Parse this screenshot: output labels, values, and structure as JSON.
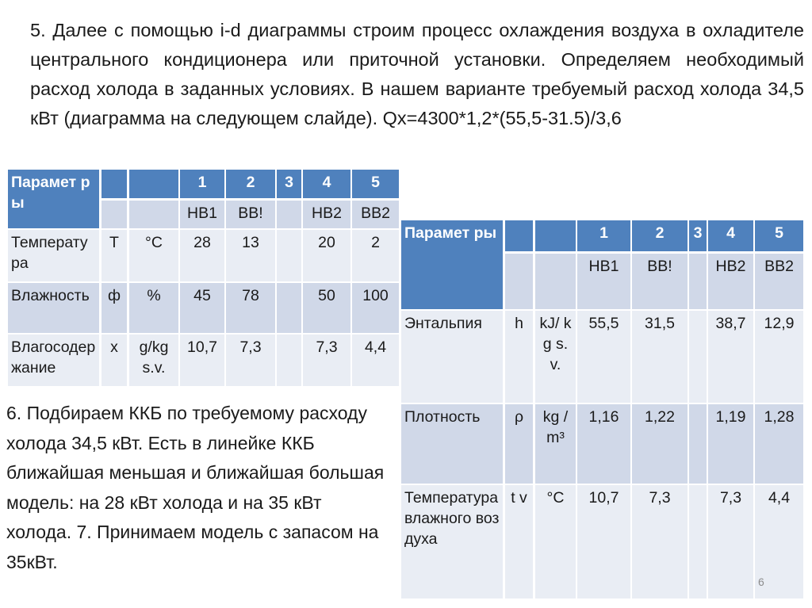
{
  "intro_text": "5. Далее с помощью i-d диаграммы строим процесс охлаждения воздуха в охладителе центрального кондиционера или приточной установки. Определяем необходимый расход холода в заданных условиях. В нашем варианте требуемый расход холода 34,5 кВт (диаграмма на следующем слайде). Qх=4300*1,2*(55,5-31.5)/3,6",
  "side_text": "6. Подбираем ККБ по требуемому расходу холода 34,5 кВт. Есть в линейке ККБ ближайшая меньшая и ближайшая большая модель: на 28 кВт холода и на 35 кВт холода. 7. Принимаем модель с запасом на 35кВт.",
  "page_number": "6",
  "colors": {
    "header": "#4f81bd",
    "band_dark": "#d0d8e8",
    "band_light": "#e9edf4"
  },
  "table_left": {
    "header_label": "Парамет ры",
    "numbers": [
      "1",
      "2",
      "3",
      "4",
      "5"
    ],
    "points": [
      "НВ1",
      "ВВ!",
      "",
      "НВ2",
      "ВВ2"
    ],
    "rows": [
      {
        "name": "Температура",
        "symbol": "T",
        "unit": "°C",
        "values": [
          "28",
          "13",
          "",
          "20",
          "2"
        ]
      },
      {
        "name": "Влажность",
        "symbol": "ф",
        "unit": "%",
        "values": [
          "45",
          "78",
          "",
          "50",
          "100"
        ]
      },
      {
        "name": "Влагосодержание",
        "symbol": "x",
        "unit": "g/kg s.v.",
        "values": [
          "10,7",
          "7,3",
          "",
          "7,3",
          "4,4"
        ]
      }
    ]
  },
  "table_right": {
    "header_label": "Парамет ры",
    "numbers": [
      "1",
      "2",
      "3",
      "4",
      "5"
    ],
    "points": [
      "НВ1",
      "ВВ!",
      "",
      "НВ2",
      "ВВ2"
    ],
    "rows": [
      {
        "name": "Энтальпия",
        "symbol": "h",
        "unit": "kJ/ kg s.v.",
        "values": [
          "55,5",
          "31,5",
          "",
          "38,7",
          "12,9"
        ]
      },
      {
        "name": "Плотность",
        "symbol": "ρ",
        "unit": "kg /m³",
        "values": [
          "1,16",
          "1,22",
          "",
          "1,19",
          "1,28"
        ]
      },
      {
        "name": "Температура влажного воздуха",
        "symbol": "t v",
        "unit": "°C",
        "values": [
          "10,7",
          "7,3",
          "",
          "7,3",
          "4,4"
        ]
      }
    ]
  }
}
